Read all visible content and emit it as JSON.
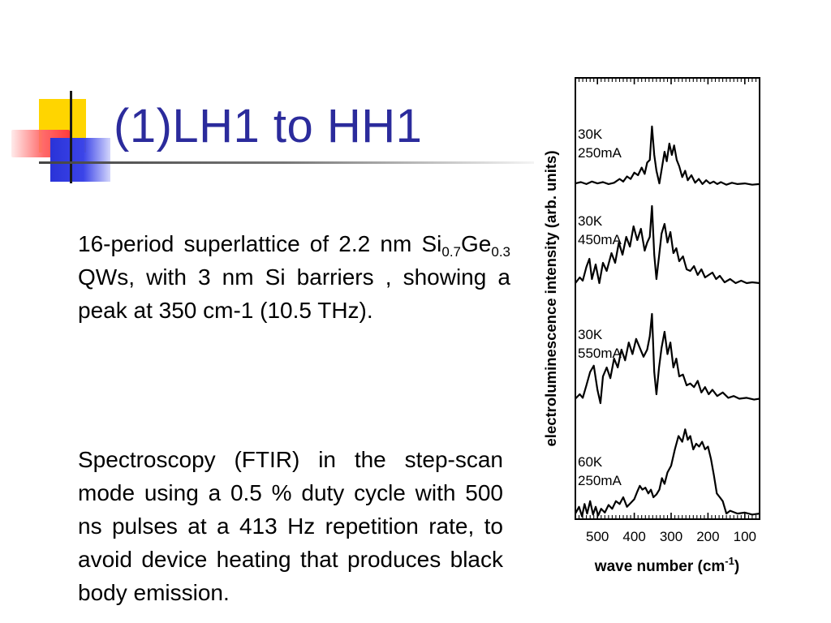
{
  "slide": {
    "title": "(1)LH1 to HH1",
    "paragraph1": {
      "line1": "16-period superlattice of 2.2 nm",
      "si": "Si",
      "si_sub": "0.7",
      "ge": "Ge",
      "ge_sub": "0.3",
      "rest": " QWs, with 3 nm Si barriers , showing a peak at 350 cm-1 (10.5 THz)."
    },
    "paragraph2": "Spectroscopy (FTIR) in the step-scan mode using a 0.5 % duty cycle with 500 ns pulses at a 413 Hz repetition rate, to avoid device heating that produces black body emission."
  },
  "chart_data": {
    "type": "line",
    "xlabel_text": "wave number (cm",
    "xlabel_sup": "-1",
    "xlabel_close": ")",
    "ylabel": "electroluminescence intensity (arb. units)",
    "x_ticks": [
      "500",
      "400",
      "300",
      "200",
      "100"
    ],
    "xlim": [
      560,
      60
    ],
    "x_reversed": true,
    "series": [
      {
        "temp": "30K",
        "current": "250mA",
        "points": [
          [
            560,
            0.05
          ],
          [
            545,
            0.07
          ],
          [
            530,
            0.04
          ],
          [
            515,
            0.08
          ],
          [
            500,
            0.05
          ],
          [
            485,
            0.07
          ],
          [
            470,
            0.04
          ],
          [
            455,
            0.06
          ],
          [
            440,
            0.12
          ],
          [
            430,
            0.08
          ],
          [
            420,
            0.16
          ],
          [
            410,
            0.12
          ],
          [
            400,
            0.22
          ],
          [
            390,
            0.18
          ],
          [
            380,
            0.3
          ],
          [
            372,
            0.2
          ],
          [
            365,
            0.38
          ],
          [
            358,
            0.42
          ],
          [
            352,
            0.95
          ],
          [
            346,
            0.5
          ],
          [
            340,
            0.25
          ],
          [
            332,
            0.05
          ],
          [
            325,
            0.3
          ],
          [
            318,
            0.55
          ],
          [
            312,
            0.4
          ],
          [
            305,
            0.68
          ],
          [
            298,
            0.5
          ],
          [
            292,
            0.65
          ],
          [
            285,
            0.42
          ],
          [
            278,
            0.32
          ],
          [
            270,
            0.15
          ],
          [
            262,
            0.25
          ],
          [
            255,
            0.1
          ],
          [
            245,
            0.18
          ],
          [
            235,
            0.06
          ],
          [
            225,
            0.12
          ],
          [
            215,
            0.04
          ],
          [
            205,
            0.1
          ],
          [
            195,
            0.05
          ],
          [
            185,
            0.08
          ],
          [
            175,
            0.04
          ],
          [
            165,
            0.07
          ],
          [
            150,
            0.03
          ],
          [
            135,
            0.06
          ],
          [
            120,
            0.04
          ],
          [
            100,
            0.05
          ],
          [
            80,
            0.03
          ],
          [
            60,
            0.04
          ]
        ]
      },
      {
        "temp": "30K",
        "current": "450mA",
        "points": [
          [
            560,
            0.05
          ],
          [
            548,
            0.12
          ],
          [
            540,
            0.08
          ],
          [
            530,
            0.25
          ],
          [
            522,
            0.35
          ],
          [
            515,
            0.1
          ],
          [
            505,
            0.28
          ],
          [
            495,
            0.05
          ],
          [
            485,
            0.3
          ],
          [
            475,
            0.2
          ],
          [
            462,
            0.42
          ],
          [
            452,
            0.3
          ],
          [
            442,
            0.55
          ],
          [
            432,
            0.4
          ],
          [
            422,
            0.62
          ],
          [
            412,
            0.5
          ],
          [
            402,
            0.75
          ],
          [
            392,
            0.58
          ],
          [
            382,
            0.72
          ],
          [
            372,
            0.45
          ],
          [
            365,
            0.55
          ],
          [
            358,
            0.62
          ],
          [
            352,
            1.0
          ],
          [
            346,
            0.4
          ],
          [
            340,
            0.1
          ],
          [
            333,
            0.38
          ],
          [
            326,
            0.66
          ],
          [
            318,
            0.78
          ],
          [
            310,
            0.55
          ],
          [
            302,
            0.68
          ],
          [
            294,
            0.42
          ],
          [
            286,
            0.48
          ],
          [
            278,
            0.32
          ],
          [
            268,
            0.38
          ],
          [
            258,
            0.22
          ],
          [
            248,
            0.2
          ],
          [
            238,
            0.26
          ],
          [
            228,
            0.15
          ],
          [
            218,
            0.22
          ],
          [
            208,
            0.12
          ],
          [
            198,
            0.15
          ],
          [
            188,
            0.18
          ],
          [
            178,
            0.1
          ],
          [
            168,
            0.14
          ],
          [
            155,
            0.06
          ],
          [
            140,
            0.1
          ],
          [
            125,
            0.05
          ],
          [
            110,
            0.08
          ],
          [
            95,
            0.05
          ],
          [
            80,
            0.06
          ],
          [
            60,
            0.05
          ]
        ]
      },
      {
        "temp": "30K",
        "current": "550mA",
        "points": [
          [
            560,
            0.05
          ],
          [
            548,
            0.1
          ],
          [
            540,
            0.06
          ],
          [
            530,
            0.2
          ],
          [
            520,
            0.35
          ],
          [
            510,
            0.42
          ],
          [
            500,
            0.15
          ],
          [
            492,
            0.0
          ],
          [
            485,
            0.3
          ],
          [
            475,
            0.4
          ],
          [
            465,
            0.28
          ],
          [
            455,
            0.5
          ],
          [
            445,
            0.4
          ],
          [
            435,
            0.6
          ],
          [
            425,
            0.48
          ],
          [
            415,
            0.68
          ],
          [
            405,
            0.55
          ],
          [
            395,
            0.72
          ],
          [
            385,
            0.62
          ],
          [
            375,
            0.52
          ],
          [
            365,
            0.6
          ],
          [
            358,
            0.75
          ],
          [
            352,
            1.0
          ],
          [
            346,
            0.35
          ],
          [
            340,
            0.1
          ],
          [
            333,
            0.4
          ],
          [
            326,
            0.62
          ],
          [
            318,
            0.8
          ],
          [
            310,
            0.55
          ],
          [
            302,
            0.68
          ],
          [
            294,
            0.4
          ],
          [
            286,
            0.5
          ],
          [
            278,
            0.3
          ],
          [
            268,
            0.32
          ],
          [
            258,
            0.2
          ],
          [
            248,
            0.22
          ],
          [
            238,
            0.18
          ],
          [
            228,
            0.25
          ],
          [
            218,
            0.12
          ],
          [
            208,
            0.18
          ],
          [
            198,
            0.1
          ],
          [
            188,
            0.15
          ],
          [
            175,
            0.08
          ],
          [
            160,
            0.12
          ],
          [
            145,
            0.06
          ],
          [
            130,
            0.08
          ],
          [
            115,
            0.05
          ],
          [
            95,
            0.06
          ],
          [
            75,
            0.04
          ],
          [
            60,
            0.05
          ]
        ]
      },
      {
        "temp": "60K",
        "current": "250mA",
        "points": [
          [
            560,
            0.05
          ],
          [
            550,
            0.12
          ],
          [
            542,
            0.02
          ],
          [
            535,
            0.15
          ],
          [
            528,
            0.05
          ],
          [
            520,
            0.18
          ],
          [
            512,
            0.04
          ],
          [
            505,
            0.12
          ],
          [
            498,
            0.03
          ],
          [
            490,
            0.1
          ],
          [
            480,
            0.06
          ],
          [
            470,
            0.14
          ],
          [
            460,
            0.1
          ],
          [
            450,
            0.18
          ],
          [
            440,
            0.15
          ],
          [
            430,
            0.22
          ],
          [
            420,
            0.12
          ],
          [
            410,
            0.16
          ],
          [
            400,
            0.2
          ],
          [
            392,
            0.28
          ],
          [
            385,
            0.34
          ],
          [
            378,
            0.3
          ],
          [
            370,
            0.32
          ],
          [
            362,
            0.26
          ],
          [
            355,
            0.3
          ],
          [
            348,
            0.22
          ],
          [
            340,
            0.25
          ],
          [
            332,
            0.3
          ],
          [
            325,
            0.42
          ],
          [
            318,
            0.36
          ],
          [
            310,
            0.48
          ],
          [
            300,
            0.55
          ],
          [
            290,
            0.72
          ],
          [
            280,
            0.86
          ],
          [
            270,
            0.8
          ],
          [
            262,
            0.93
          ],
          [
            255,
            0.82
          ],
          [
            248,
            0.86
          ],
          [
            240,
            0.72
          ],
          [
            232,
            0.78
          ],
          [
            224,
            0.75
          ],
          [
            216,
            0.8
          ],
          [
            208,
            0.72
          ],
          [
            200,
            0.75
          ],
          [
            192,
            0.62
          ],
          [
            184,
            0.45
          ],
          [
            176,
            0.26
          ],
          [
            168,
            0.22
          ],
          [
            160,
            0.18
          ],
          [
            150,
            0.05
          ],
          [
            140,
            0.08
          ],
          [
            120,
            0.05
          ],
          [
            100,
            0.06
          ],
          [
            80,
            0.04
          ],
          [
            60,
            0.05
          ]
        ]
      }
    ]
  },
  "colors": {
    "title": "#2b2b9c",
    "text": "#000000",
    "deco_yellow": "#ffd500",
    "deco_blue": "#2a33d8",
    "deco_red": "#ff4040"
  }
}
